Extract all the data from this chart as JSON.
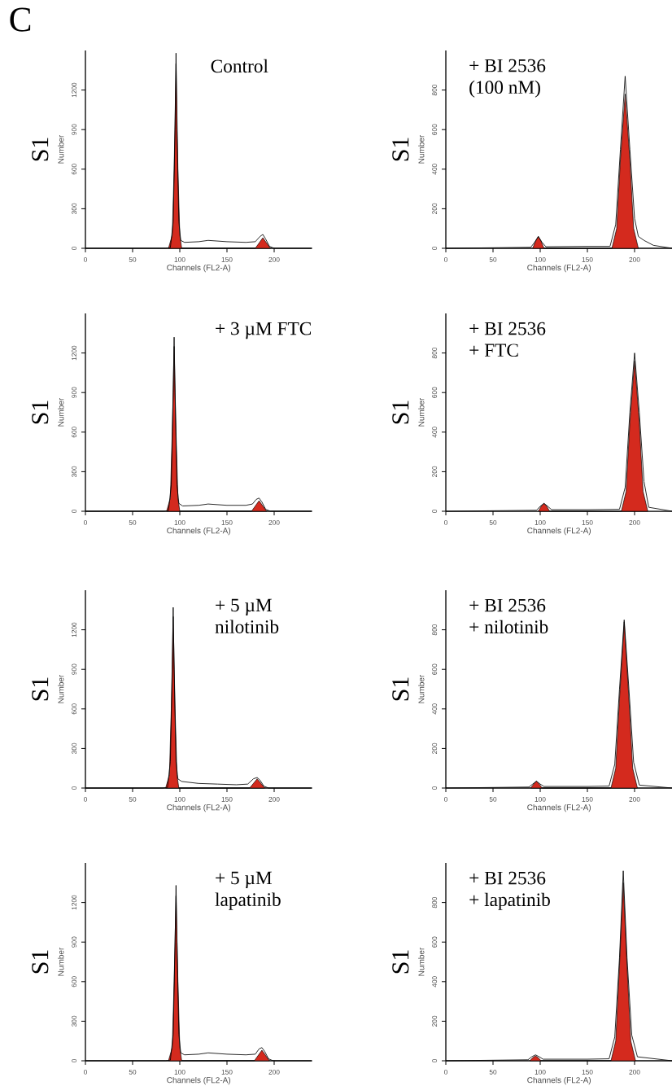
{
  "chart_data": [
    {
      "type": "area",
      "title": "Control",
      "xlabel": "Channels (FL2-A)",
      "ylabel": "Number",
      "annotations": [
        "S1",
        "C"
      ],
      "xlim": [
        0,
        240
      ],
      "ylim": [
        0,
        1500
      ],
      "xticks": [
        0,
        50,
        100,
        150,
        200
      ],
      "yticks": [
        0,
        300,
        600,
        900,
        1200
      ],
      "series": [
        {
          "color": "#d42a1e",
          "x": [
            88,
            92,
            94,
            96,
            98,
            100,
            102,
            180,
            184,
            188,
            192,
            196
          ],
          "values": [
            0,
            100,
            600,
            1400,
            600,
            100,
            0,
            0,
            40,
            80,
            40,
            0
          ]
        },
        {
          "type": "line",
          "color": "#000000",
          "x": [
            0,
            85,
            90,
            93,
            95,
            96,
            97,
            99,
            101,
            105,
            120,
            130,
            150,
            170,
            180,
            185,
            188,
            191,
            195,
            200,
            240
          ],
          "values": [
            0,
            0,
            5,
            200,
            900,
            1480,
            900,
            200,
            60,
            45,
            50,
            60,
            50,
            45,
            50,
            90,
            105,
            70,
            15,
            0,
            0
          ]
        }
      ]
    },
    {
      "type": "area",
      "title": "+ BI 2536",
      "subtitle": "(100 nM)",
      "xlabel": "Channels (FL2-A)",
      "ylabel": "Number",
      "annotations": [
        "S1"
      ],
      "xlim": [
        0,
        240
      ],
      "ylim": [
        0,
        1000
      ],
      "xticks": [
        0,
        50,
        100,
        150,
        200
      ],
      "yticks": [
        0,
        200,
        400,
        600,
        800
      ],
      "series": [
        {
          "color": "#d42a1e",
          "x": [
            92,
            95,
            98,
            101,
            104,
            176,
            181,
            185,
            190,
            195,
            199,
            204
          ],
          "values": [
            0,
            35,
            60,
            35,
            0,
            0,
            100,
            450,
            780,
            450,
            100,
            0
          ]
        },
        {
          "type": "line",
          "color": "#000000",
          "x": [
            0,
            90,
            94,
            98,
            102,
            106,
            150,
            174,
            180,
            185,
            190,
            195,
            200,
            204,
            210,
            220,
            240
          ],
          "values": [
            0,
            5,
            30,
            60,
            30,
            8,
            10,
            10,
            120,
            500,
            870,
            500,
            150,
            60,
            40,
            15,
            0
          ]
        }
      ]
    },
    {
      "type": "area",
      "title": "+ 3 µM FTC",
      "xlabel": "Channels (FL2-A)",
      "ylabel": "Number",
      "annotations": [
        "S1"
      ],
      "xlim": [
        0,
        240
      ],
      "ylim": [
        0,
        1500
      ],
      "xticks": [
        0,
        50,
        100,
        150,
        200
      ],
      "yticks": [
        0,
        300,
        600,
        900,
        1200
      ],
      "series": [
        {
          "color": "#d42a1e",
          "x": [
            86,
            90,
            92,
            94,
            96,
            98,
            100,
            176,
            180,
            184,
            188,
            192
          ],
          "values": [
            0,
            100,
            600,
            1250,
            600,
            100,
            0,
            0,
            40,
            80,
            40,
            0
          ]
        },
        {
          "type": "line",
          "color": "#000000",
          "x": [
            0,
            83,
            88,
            91,
            93,
            94,
            95,
            97,
            99,
            103,
            120,
            130,
            150,
            170,
            177,
            181,
            184,
            187,
            191,
            196,
            240
          ],
          "values": [
            0,
            0,
            5,
            200,
            900,
            1320,
            900,
            200,
            60,
            40,
            45,
            55,
            45,
            45,
            55,
            90,
            100,
            70,
            15,
            0,
            0
          ]
        }
      ]
    },
    {
      "type": "area",
      "title": "+ BI 2536",
      "subtitle": "+ FTC",
      "xlabel": "Channels (FL2-A)",
      "ylabel": "Number",
      "annotations": [
        "S1"
      ],
      "xlim": [
        0,
        240
      ],
      "ylim": [
        0,
        1000
      ],
      "xticks": [
        0,
        50,
        100,
        150,
        200
      ],
      "yticks": [
        0,
        200,
        400,
        600,
        800
      ],
      "series": [
        {
          "color": "#d42a1e",
          "x": [
            98,
            101,
            104,
            107,
            110,
            186,
            191,
            195,
            200,
            205,
            209,
            214
          ],
          "values": [
            0,
            25,
            40,
            25,
            0,
            0,
            100,
            450,
            760,
            450,
            100,
            0
          ]
        },
        {
          "type": "line",
          "color": "#000000",
          "x": [
            0,
            96,
            100,
            104,
            108,
            112,
            150,
            184,
            190,
            195,
            200,
            205,
            210,
            215,
            240
          ],
          "values": [
            0,
            5,
            25,
            40,
            25,
            8,
            8,
            10,
            120,
            500,
            800,
            500,
            150,
            20,
            0
          ]
        }
      ]
    },
    {
      "type": "area",
      "title": "+ 5 µM",
      "subtitle": "nilotinib",
      "xlabel": "Channels (FL2-A)",
      "ylabel": "Number",
      "annotations": [
        "S1"
      ],
      "xlim": [
        0,
        240
      ],
      "ylim": [
        0,
        1500
      ],
      "xticks": [
        0,
        50,
        100,
        150,
        200
      ],
      "yticks": [
        0,
        300,
        600,
        900,
        1200
      ],
      "series": [
        {
          "color": "#d42a1e",
          "x": [
            85,
            89,
            91,
            93,
            95,
            97,
            99,
            174,
            178,
            182,
            186,
            190
          ],
          "values": [
            0,
            100,
            600,
            1300,
            600,
            100,
            0,
            0,
            35,
            70,
            35,
            0
          ]
        },
        {
          "type": "line",
          "color": "#000000",
          "x": [
            0,
            82,
            87,
            90,
            92,
            93,
            94,
            96,
            98,
            102,
            120,
            140,
            160,
            172,
            178,
            182,
            185,
            189,
            194,
            240
          ],
          "values": [
            0,
            0,
            5,
            200,
            900,
            1370,
            900,
            200,
            70,
            50,
            35,
            30,
            25,
            30,
            70,
            80,
            60,
            15,
            0,
            0
          ]
        }
      ]
    },
    {
      "type": "area",
      "title": "+ BI 2536",
      "subtitle": "+ nilotinib",
      "xlabel": "Channels (FL2-A)",
      "ylabel": "Number",
      "annotations": [
        "S1"
      ],
      "xlim": [
        0,
        240
      ],
      "ylim": [
        0,
        1000
      ],
      "xticks": [
        0,
        50,
        100,
        150,
        200
      ],
      "yticks": [
        0,
        200,
        400,
        600,
        800
      ],
      "series": [
        {
          "color": "#d42a1e",
          "x": [
            90,
            93,
            96,
            99,
            102,
            175,
            180,
            184,
            189,
            194,
            198,
            203
          ],
          "values": [
            0,
            20,
            35,
            20,
            0,
            0,
            100,
            450,
            840,
            450,
            100,
            0
          ]
        },
        {
          "type": "line",
          "color": "#000000",
          "x": [
            0,
            88,
            92,
            96,
            100,
            104,
            150,
            173,
            179,
            184,
            189,
            194,
            199,
            205,
            240
          ],
          "values": [
            0,
            5,
            20,
            35,
            20,
            8,
            8,
            10,
            120,
            500,
            850,
            500,
            130,
            15,
            0
          ]
        }
      ]
    },
    {
      "type": "area",
      "title": "+ 5 µM",
      "subtitle": "lapatinib",
      "xlabel": "Channels (FL2-A)",
      "ylabel": "Number",
      "annotations": [
        "S1"
      ],
      "xlim": [
        0,
        240
      ],
      "ylim": [
        0,
        1500
      ],
      "xticks": [
        0,
        50,
        100,
        150,
        200
      ],
      "yticks": [
        0,
        300,
        600,
        900,
        1200
      ],
      "series": [
        {
          "color": "#d42a1e",
          "x": [
            88,
            92,
            94,
            96,
            98,
            100,
            102,
            179,
            183,
            187,
            191,
            195
          ],
          "values": [
            0,
            100,
            600,
            1250,
            600,
            100,
            0,
            0,
            40,
            80,
            40,
            0
          ]
        },
        {
          "type": "line",
          "color": "#000000",
          "x": [
            0,
            85,
            90,
            93,
            95,
            96,
            97,
            99,
            101,
            105,
            120,
            130,
            150,
            170,
            180,
            184,
            187,
            190,
            194,
            199,
            240
          ],
          "values": [
            0,
            0,
            5,
            200,
            900,
            1330,
            900,
            200,
            60,
            45,
            50,
            60,
            50,
            45,
            50,
            90,
            100,
            70,
            15,
            0,
            0
          ]
        }
      ]
    },
    {
      "type": "area",
      "title": "+ BI 2536",
      "subtitle": "+ lapatinib",
      "xlabel": "Channels (FL2-A)",
      "ylabel": "Number",
      "annotations": [
        "S1"
      ],
      "xlim": [
        0,
        240
      ],
      "ylim": [
        0,
        1000
      ],
      "xticks": [
        0,
        50,
        100,
        150,
        200
      ],
      "yticks": [
        0,
        200,
        400,
        600,
        800
      ],
      "series": [
        {
          "color": "#d42a1e",
          "x": [
            89,
            92,
            95,
            98,
            101,
            175,
            180,
            184,
            188,
            192,
            196,
            201
          ],
          "values": [
            0,
            15,
            25,
            15,
            0,
            0,
            100,
            480,
            900,
            480,
            100,
            0
          ]
        },
        {
          "type": "line",
          "color": "#000000",
          "x": [
            0,
            87,
            91,
            95,
            99,
            103,
            150,
            173,
            179,
            184,
            188,
            192,
            197,
            203,
            240
          ],
          "values": [
            0,
            5,
            20,
            30,
            20,
            8,
            8,
            10,
            120,
            520,
            960,
            520,
            130,
            20,
            0
          ]
        }
      ]
    }
  ]
}
